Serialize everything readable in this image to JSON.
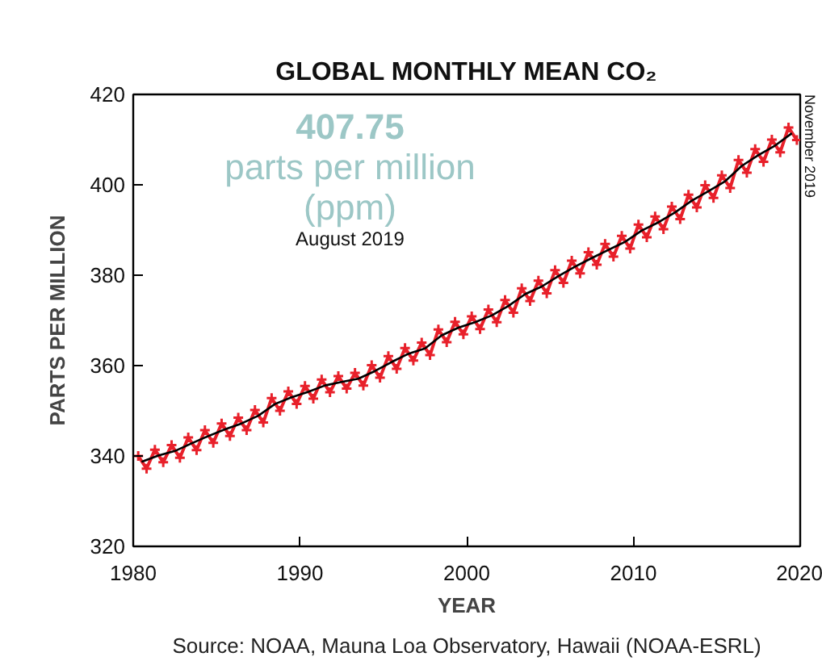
{
  "chart_data": {
    "type": "line",
    "title": "GLOBAL MONTHLY MEAN CO₂",
    "xlabel": "YEAR",
    "ylabel": "PARTS PER MILLION",
    "xlim": [
      1980,
      2020
    ],
    "ylim": [
      320,
      420
    ],
    "xticks": [
      1980,
      1990,
      2000,
      2010,
      2020
    ],
    "yticks": [
      320,
      340,
      360,
      380,
      400,
      420
    ],
    "grid": false,
    "marker": "cross",
    "line_style": "solid",
    "annotations": [
      "407.75",
      "parts per million",
      "(ppm)",
      "August 2019",
      "November 2019",
      "Source: NOAA, Mauna Loa Observatory, Hawaii (NOAA-ESRL)"
    ],
    "series": [
      {
        "color": "#e8202a",
        "x": [
          1980.3,
          1980.8,
          1981.3,
          1981.8,
          1982.3,
          1982.8,
          1983.3,
          1983.8,
          1984.3,
          1984.8,
          1985.3,
          1985.8,
          1986.3,
          1986.8,
          1987.3,
          1987.8,
          1988.3,
          1988.8,
          1989.3,
          1989.8,
          1990.3,
          1990.8,
          1991.3,
          1991.8,
          1992.3,
          1992.8,
          1993.3,
          1993.8,
          1994.3,
          1994.8,
          1995.3,
          1995.8,
          1996.3,
          1996.8,
          1997.3,
          1997.8,
          1998.3,
          1998.8,
          1999.3,
          1999.8,
          2000.3,
          2000.8,
          2001.3,
          2001.8,
          2002.3,
          2002.8,
          2003.3,
          2003.8,
          2004.3,
          2004.8,
          2005.3,
          2005.8,
          2006.3,
          2006.8,
          2007.3,
          2007.8,
          2008.3,
          2008.8,
          2009.3,
          2009.8,
          2010.3,
          2010.8,
          2011.3,
          2011.8,
          2012.3,
          2012.8,
          2013.3,
          2013.8,
          2014.3,
          2014.8,
          2015.3,
          2015.8,
          2016.3,
          2016.8,
          2017.3,
          2017.8,
          2018.3,
          2018.8,
          2019.3,
          2019.8
        ],
        "values": [
          340.0,
          337.2,
          341.4,
          338.6,
          342.4,
          339.6,
          344.1,
          341.3,
          345.7,
          342.9,
          347.2,
          344.4,
          348.5,
          345.7,
          350.2,
          347.4,
          352.8,
          350.0,
          354.3,
          351.5,
          355.5,
          352.7,
          356.9,
          354.1,
          357.7,
          354.9,
          358.4,
          355.6,
          360.1,
          357.3,
          362.1,
          359.3,
          363.9,
          361.1,
          365.1,
          362.3,
          368.0,
          365.2,
          369.7,
          366.9,
          370.9,
          368.1,
          372.4,
          369.6,
          374.5,
          371.7,
          377.1,
          374.3,
          378.8,
          376.0,
          381.1,
          378.3,
          383.2,
          380.4,
          385.1,
          382.3,
          386.9,
          384.1,
          388.7,
          385.9,
          391.2,
          388.4,
          393.0,
          390.2,
          395.2,
          392.4,
          397.8,
          395.0,
          399.9,
          397.1,
          402.1,
          399.3,
          405.5,
          402.7,
          407.9,
          405.1,
          410.0,
          407.2,
          412.7,
          409.9
        ]
      },
      {
        "color": "#000000",
        "marker": "none",
        "x": [
          1980.5,
          1981.5,
          1982.5,
          1983.5,
          1984.5,
          1985.5,
          1986.5,
          1987.5,
          1988.5,
          1989.5,
          1990.5,
          1991.5,
          1992.5,
          1993.5,
          1994.5,
          1995.5,
          1996.5,
          1997.5,
          1998.5,
          1999.5,
          2000.5,
          2001.5,
          2002.5,
          2003.5,
          2004.5,
          2005.5,
          2006.5,
          2007.5,
          2008.5,
          2009.5,
          2010.5,
          2011.5,
          2012.5,
          2013.5,
          2014.5,
          2015.5,
          2016.5,
          2017.5,
          2018.5,
          2019.5
        ],
        "values": [
          338.7,
          340.1,
          341.1,
          342.8,
          344.4,
          345.9,
          347.2,
          348.9,
          351.5,
          353.0,
          354.2,
          355.6,
          356.4,
          357.1,
          358.8,
          360.8,
          362.6,
          363.8,
          366.7,
          368.4,
          369.6,
          371.1,
          373.2,
          375.8,
          377.5,
          379.8,
          381.9,
          383.8,
          385.6,
          387.4,
          389.9,
          391.7,
          393.9,
          396.5,
          398.6,
          400.8,
          404.2,
          406.6,
          408.7,
          411.4
        ]
      }
    ]
  }
}
